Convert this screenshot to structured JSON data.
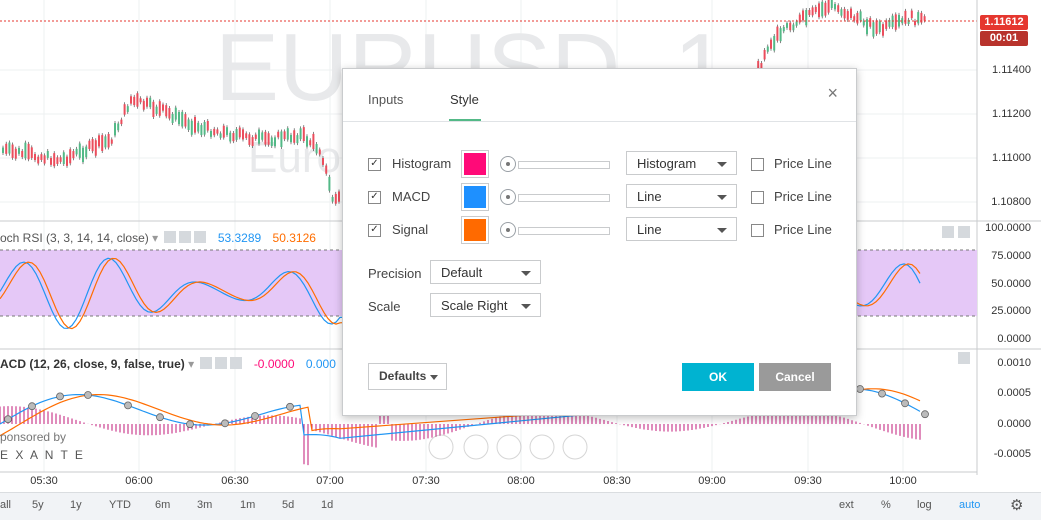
{
  "chart": {
    "watermark_symbol": "EURUSD, 1",
    "watermark_desc": "Euro",
    "last_price": "1.11612",
    "countdown": "00:01",
    "price_labels": [
      "1.11400",
      "1.11200",
      "1.11000",
      "1.10800"
    ],
    "stoch_rsi_legend": {
      "title": "och RSI (3, 3, 14, 14, close)",
      "value_k": "53.3289",
      "value_d": "50.3126"
    },
    "stoch_axis_labels": [
      "100.0000",
      "75.0000",
      "50.0000",
      "25.0000",
      "0.0000"
    ],
    "macd_legend": {
      "title": "ACD (12, 26, close, 9, false, true)",
      "value_hist": "-0.0000",
      "value_macd": "0.000"
    },
    "macd_axis_labels": [
      "0.0010",
      "0.0005",
      "0.0000",
      "-0.0005"
    ],
    "sponsored_by": "ponsored by",
    "sponsor_name": "E X A N T E",
    "time_labels": [
      "05:30",
      "06:00",
      "06:30",
      "07:00",
      "07:30",
      "08:00",
      "08:30",
      "09:00",
      "09:30",
      "10:00"
    ]
  },
  "bottom_toolbar": {
    "items": [
      "all",
      "5y",
      "1y",
      "YTD",
      "6m",
      "3m",
      "1m",
      "5d",
      "1d"
    ],
    "right_items": [
      "ext",
      "%",
      "log",
      "auto"
    ]
  },
  "dialog": {
    "tabs": [
      "Inputs",
      "Style"
    ],
    "active_tab": "Style",
    "rows": [
      {
        "label": "Histogram",
        "color": "#ff0a78",
        "style": "Histogram",
        "price_line": "Price Line",
        "checked": true
      },
      {
        "label": "MACD",
        "color": "#1e90ff",
        "style": "Line",
        "price_line": "Price Line",
        "checked": true
      },
      {
        "label": "Signal",
        "color": "#ff6a00",
        "style": "Line",
        "price_line": "Price Line",
        "checked": true
      }
    ],
    "precision_label": "Precision",
    "precision_value": "Default",
    "scale_label": "Scale",
    "scale_value": "Scale Right",
    "defaults_label": "Defaults",
    "ok_label": "OK",
    "cancel_label": "Cancel"
  },
  "colors": {
    "up_candle": "#53b987",
    "down_candle": "#eb4d5c",
    "stoch_k": "#2196f3",
    "stoch_d": "#ff6d00",
    "stoch_band": "#e5c8f7",
    "price_tag": "#e5372f",
    "ok_button": "#00b3d1"
  }
}
